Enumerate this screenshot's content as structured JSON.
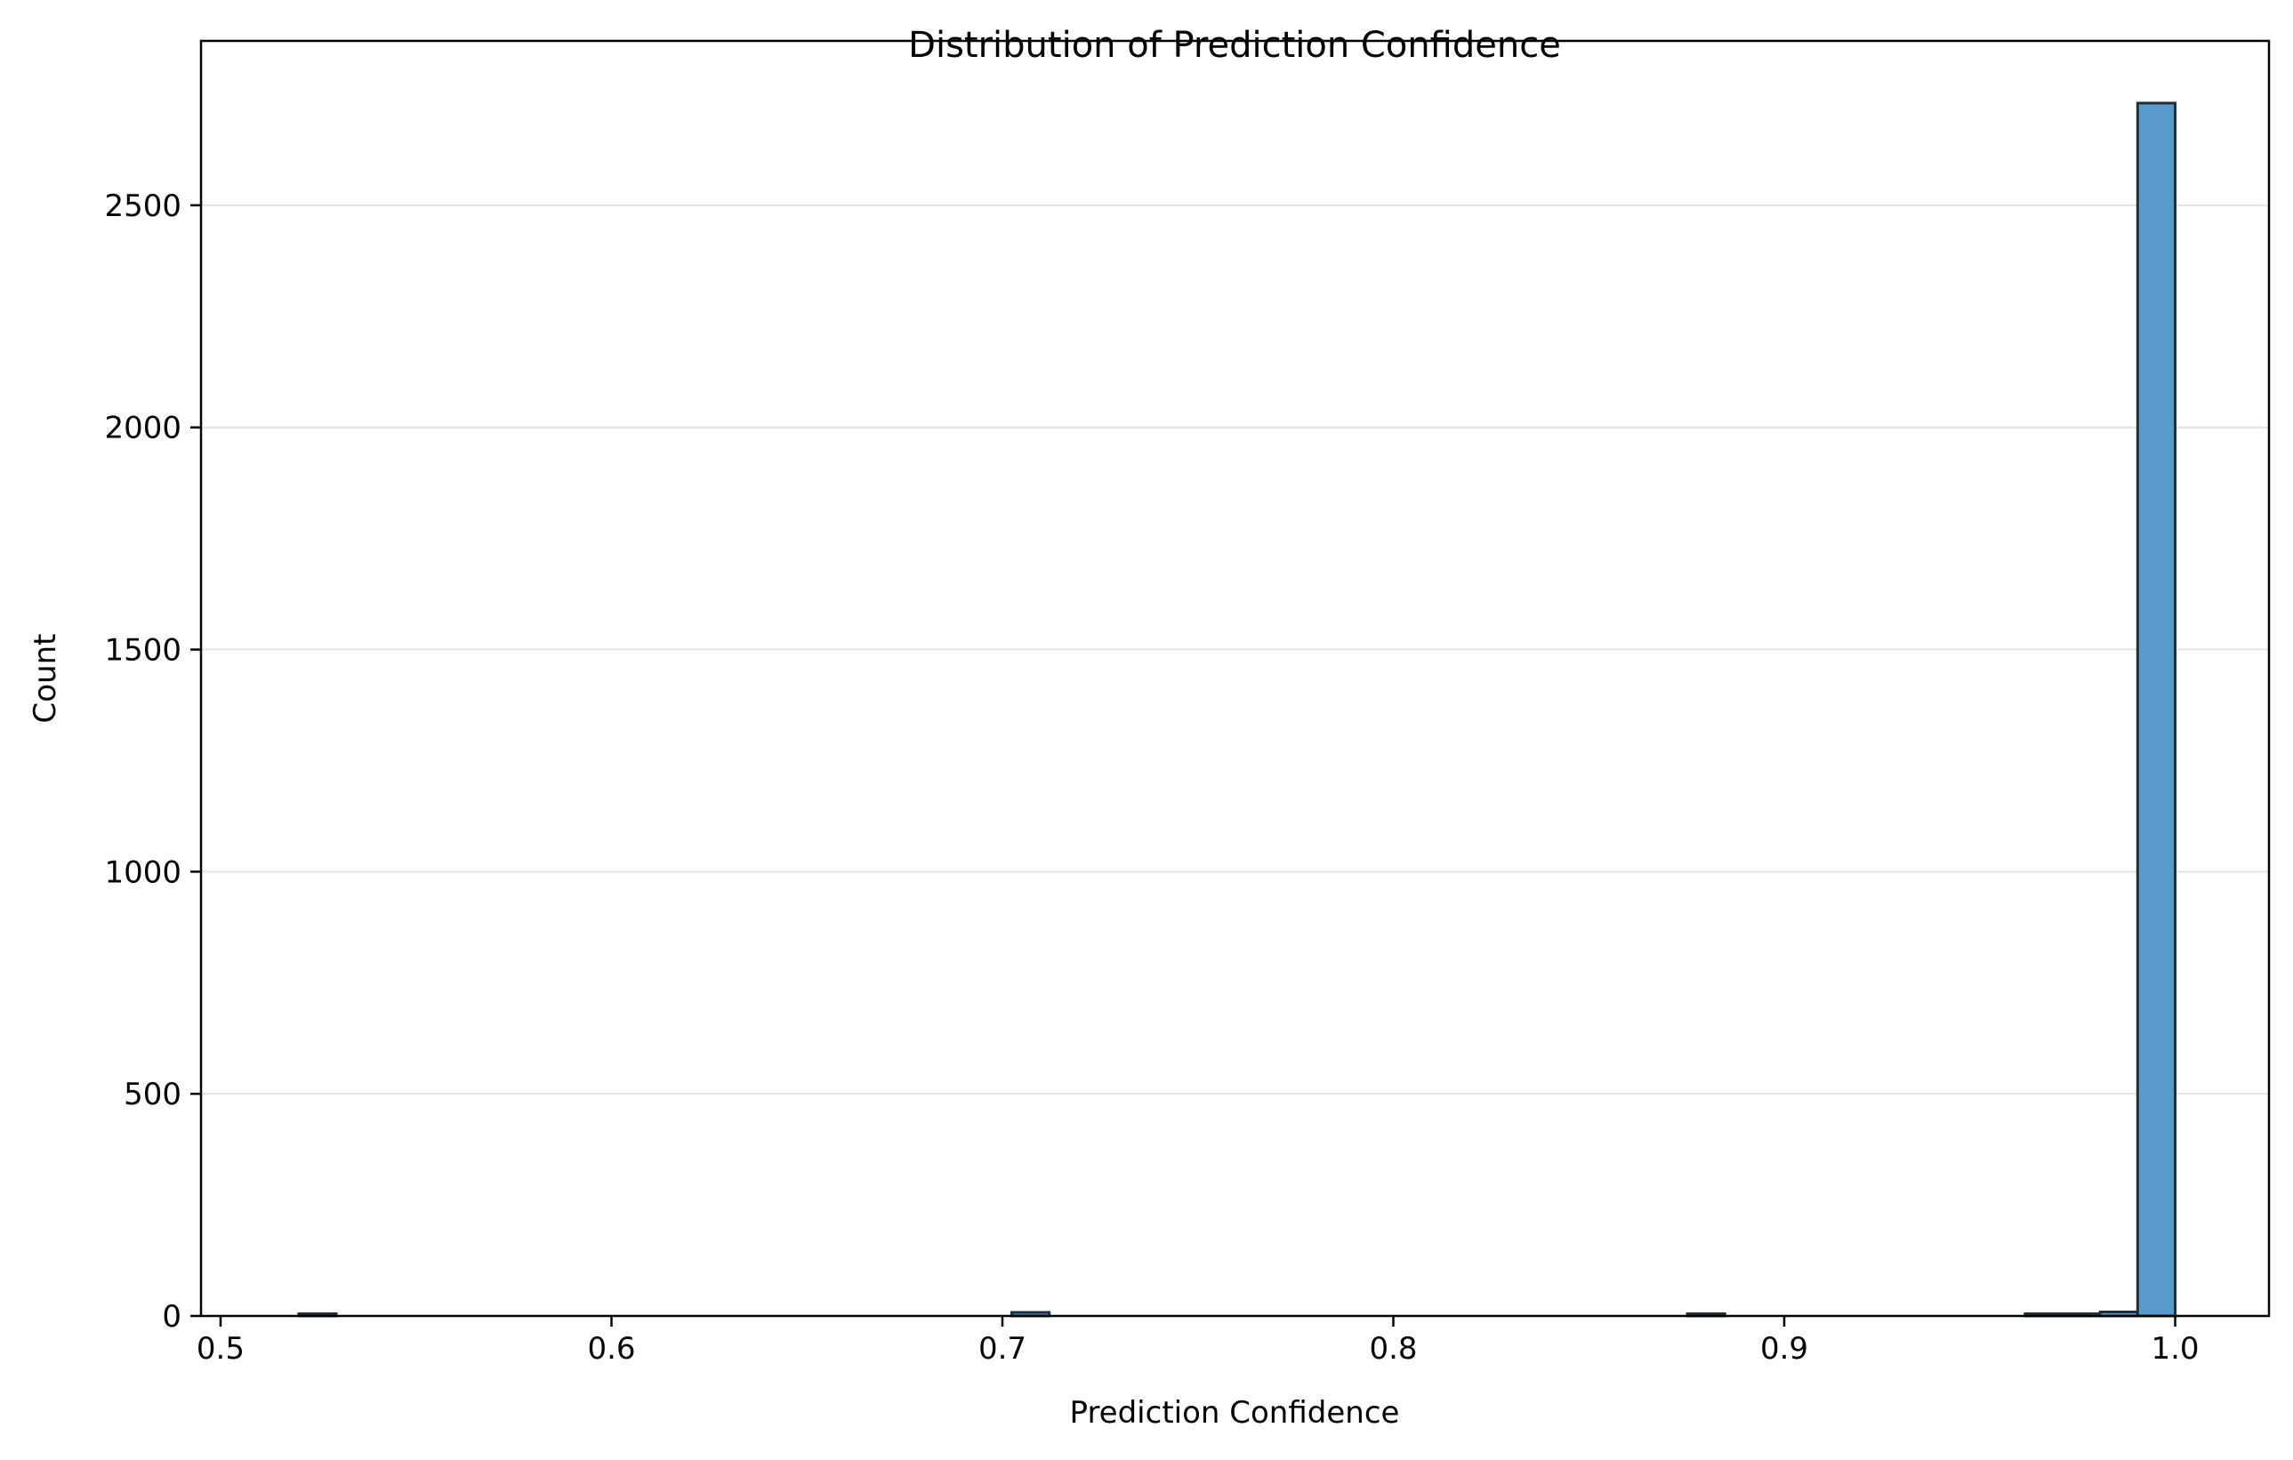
{
  "chart_data": {
    "type": "bar",
    "subtype": "histogram",
    "title": "Distribution of Prediction Confidence",
    "xlabel": "Prediction Confidence",
    "ylabel": "Count",
    "xlim": [
      0.495,
      1.024
    ],
    "ylim": [
      0,
      2870
    ],
    "x_ticks": [
      0.5,
      0.6,
      0.7,
      0.8,
      0.9,
      1.0
    ],
    "x_tick_labels": [
      "0.5",
      "0.6",
      "0.7",
      "0.8",
      "0.9",
      "1.0"
    ],
    "y_ticks": [
      0,
      500,
      1000,
      1500,
      2000,
      2500
    ],
    "y_tick_labels": [
      "0",
      "500",
      "1000",
      "1500",
      "2000",
      "2500"
    ],
    "grid": "y",
    "bin_start": 0.52,
    "bin_width": 0.0096,
    "bins": [
      {
        "x0": 0.52,
        "x1": 0.5296,
        "count": 1
      },
      {
        "x0": 0.7024,
        "x1": 0.712,
        "count": 8
      },
      {
        "x0": 0.8752,
        "x1": 0.8848,
        "count": 1
      },
      {
        "x0": 0.9616,
        "x1": 0.9712,
        "count": 2
      },
      {
        "x0": 0.9712,
        "x1": 0.9808,
        "count": 5
      },
      {
        "x0": 0.9808,
        "x1": 0.9904,
        "count": 9
      },
      {
        "x0": 0.9904,
        "x1": 1.0,
        "count": 2730
      }
    ],
    "bar_color": "#5a9bcd",
    "edge_color": "#1f2f3c"
  }
}
